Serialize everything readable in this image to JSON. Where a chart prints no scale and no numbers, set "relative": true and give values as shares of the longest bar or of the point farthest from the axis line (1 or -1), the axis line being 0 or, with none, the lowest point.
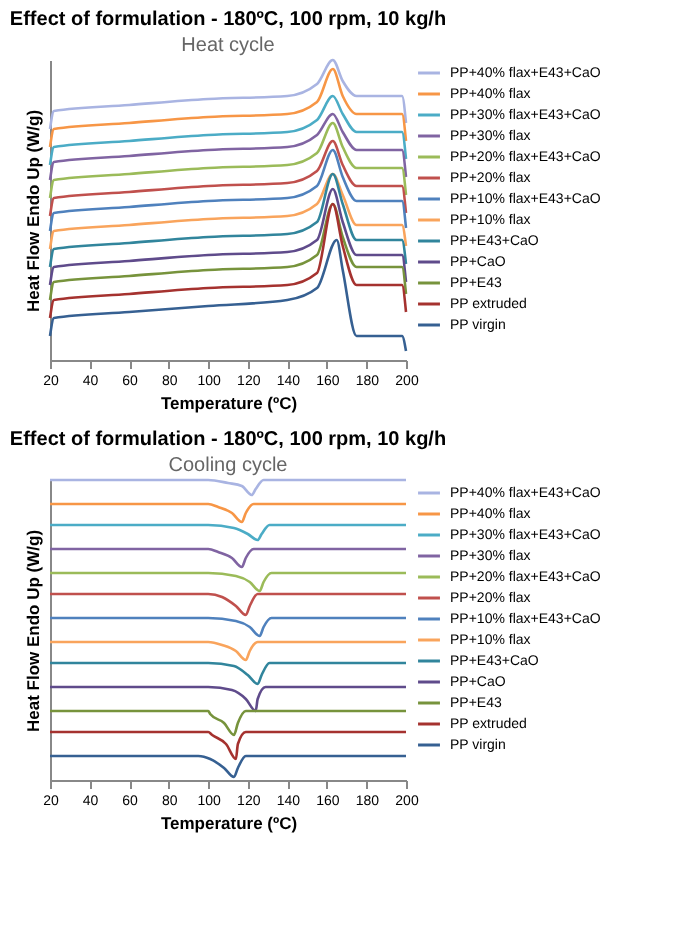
{
  "chart_data": [
    {
      "type": "line",
      "title": "Effect of formulation - 180ºC, 100 rpm, 10 kg/h",
      "subtitle": "Heat cycle",
      "xlabel": "Temperature (ºC)",
      "ylabel": "Heat Flow Endo Up (W/g)",
      "relative": true,
      "xlim": [
        20,
        200
      ],
      "xticks": [
        20,
        40,
        60,
        80,
        100,
        120,
        140,
        160,
        180,
        200
      ],
      "legend": "right",
      "grid": false,
      "x": [
        20,
        22,
        60,
        100,
        140,
        155,
        163,
        168,
        175,
        198,
        200
      ],
      "series": [
        {
          "name": "PP+40% flax+E43+CaO",
          "color": "#a9b4e2",
          "values": [
            0.77,
            0.83,
            0.85,
            0.87,
            0.88,
            0.92,
            1.0,
            0.93,
            0.88,
            0.88,
            0.79
          ]
        },
        {
          "name": "PP+40% flax",
          "color": "#f79646",
          "values": [
            0.71,
            0.77,
            0.79,
            0.81,
            0.82,
            0.86,
            0.97,
            0.88,
            0.82,
            0.82,
            0.73
          ]
        },
        {
          "name": "PP+30% flax+E43+CaO",
          "color": "#4bacc6",
          "values": [
            0.65,
            0.71,
            0.73,
            0.75,
            0.76,
            0.8,
            0.88,
            0.82,
            0.76,
            0.76,
            0.67
          ]
        },
        {
          "name": "PP+30% flax",
          "color": "#8064a2",
          "values": [
            0.6,
            0.66,
            0.68,
            0.7,
            0.71,
            0.75,
            0.82,
            0.76,
            0.7,
            0.7,
            0.61
          ]
        },
        {
          "name": "PP+20% flax+E43+CaO",
          "color": "#9bbb59",
          "values": [
            0.54,
            0.6,
            0.62,
            0.64,
            0.65,
            0.69,
            0.79,
            0.71,
            0.64,
            0.64,
            0.55
          ]
        },
        {
          "name": "PP+20% flax",
          "color": "#c0504d",
          "values": [
            0.48,
            0.54,
            0.56,
            0.58,
            0.59,
            0.63,
            0.73,
            0.65,
            0.58,
            0.58,
            0.49
          ]
        },
        {
          "name": "PP+10% flax+E43+CaO",
          "color": "#4f81bd",
          "values": [
            0.43,
            0.49,
            0.51,
            0.53,
            0.54,
            0.58,
            0.7,
            0.61,
            0.53,
            0.53,
            0.44
          ]
        },
        {
          "name": "PP+10% flax",
          "color": "#f9a45c",
          "values": [
            0.37,
            0.43,
            0.45,
            0.47,
            0.48,
            0.52,
            0.62,
            0.55,
            0.45,
            0.45,
            0.38
          ]
        },
        {
          "name": "PP+E43+CaO",
          "color": "#31859c",
          "values": [
            0.31,
            0.37,
            0.39,
            0.41,
            0.42,
            0.46,
            0.62,
            0.52,
            0.4,
            0.4,
            0.32
          ]
        },
        {
          "name": "PP+CaO",
          "color": "#5f4b8b",
          "values": [
            0.25,
            0.31,
            0.33,
            0.35,
            0.36,
            0.4,
            0.57,
            0.46,
            0.35,
            0.35,
            0.26
          ]
        },
        {
          "name": "PP+E43",
          "color": "#77933c",
          "values": [
            0.2,
            0.26,
            0.28,
            0.3,
            0.31,
            0.35,
            0.52,
            0.41,
            0.31,
            0.31,
            0.22
          ]
        },
        {
          "name": "PP extruded",
          "color": "#a5322f",
          "values": [
            0.14,
            0.2,
            0.22,
            0.24,
            0.25,
            0.29,
            0.52,
            0.38,
            0.25,
            0.25,
            0.16
          ]
        },
        {
          "name": "PP virgin",
          "color": "#366092",
          "x": [
            20,
            22,
            60,
            100,
            140,
            155,
            165,
            168,
            175,
            198,
            200
          ],
          "values": [
            0.08,
            0.14,
            0.16,
            0.18,
            0.2,
            0.24,
            0.4,
            0.3,
            0.08,
            0.08,
            0.03
          ]
        }
      ]
    },
    {
      "type": "line",
      "title": "Effect of formulation - 180ºC, 100 rpm, 10 kg/h",
      "subtitle": "Cooling cycle",
      "xlabel": "Temperature (ºC)",
      "ylabel": "Heat Flow Endo Up (W/g)",
      "relative": true,
      "xlim": [
        20,
        200
      ],
      "xticks": [
        20,
        40,
        60,
        80,
        100,
        120,
        140,
        160,
        180,
        200
      ],
      "legend": "right",
      "grid": false,
      "series": [
        {
          "name": "PP+40% flax+E43+CaO",
          "color": "#a9b4e2",
          "x": [
            20,
            100,
            110,
            117,
            122,
            124,
            128,
            200
          ],
          "values": [
            1.0,
            1.0,
            0.99,
            0.98,
            0.95,
            0.97,
            1.0,
            1.0
          ]
        },
        {
          "name": "PP+40% flax",
          "color": "#f79646",
          "x": [
            20,
            100,
            105,
            112,
            117,
            119,
            123,
            200
          ],
          "values": [
            0.92,
            0.92,
            0.91,
            0.89,
            0.86,
            0.89,
            0.92,
            0.92
          ]
        },
        {
          "name": "PP+30% flax+E43+CaO",
          "color": "#4bacc6",
          "x": [
            20,
            100,
            113,
            120,
            125,
            127,
            131,
            200
          ],
          "values": [
            0.85,
            0.85,
            0.84,
            0.82,
            0.8,
            0.82,
            0.85,
            0.85
          ]
        },
        {
          "name": "PP+30% flax",
          "color": "#8064a2",
          "x": [
            20,
            100,
            105,
            112,
            117,
            119,
            123,
            200
          ],
          "values": [
            0.77,
            0.77,
            0.76,
            0.74,
            0.71,
            0.74,
            0.77,
            0.77
          ]
        },
        {
          "name": "PP+20% flax+E43+CaO",
          "color": "#9bbb59",
          "x": [
            20,
            100,
            114,
            121,
            126,
            128,
            132,
            200
          ],
          "values": [
            0.69,
            0.69,
            0.68,
            0.66,
            0.63,
            0.66,
            0.69,
            0.69
          ]
        },
        {
          "name": "PP+20% flax",
          "color": "#c0504d",
          "x": [
            20,
            100,
            107,
            114,
            119,
            121,
            125,
            200
          ],
          "values": [
            0.62,
            0.62,
            0.61,
            0.58,
            0.55,
            0.58,
            0.62,
            0.62
          ]
        },
        {
          "name": "PP+10% flax+E43+CaO",
          "color": "#4f81bd",
          "x": [
            20,
            100,
            114,
            121,
            126,
            128,
            132,
            200
          ],
          "values": [
            0.54,
            0.54,
            0.53,
            0.51,
            0.48,
            0.51,
            0.54,
            0.54
          ]
        },
        {
          "name": "PP+10% flax",
          "color": "#f9a45c",
          "x": [
            20,
            100,
            107,
            114,
            119,
            121,
            125,
            200
          ],
          "values": [
            0.46,
            0.46,
            0.45,
            0.43,
            0.4,
            0.43,
            0.46,
            0.46
          ]
        },
        {
          "name": "PP+E43+CaO",
          "color": "#31859c",
          "x": [
            20,
            100,
            113,
            120,
            125,
            127,
            131,
            200
          ],
          "values": [
            0.39,
            0.39,
            0.38,
            0.35,
            0.32,
            0.35,
            0.39,
            0.39
          ]
        },
        {
          "name": "PP+CaO",
          "color": "#5f4b8b",
          "x": [
            20,
            100,
            112,
            119,
            124,
            125,
            129,
            200
          ],
          "values": [
            0.31,
            0.31,
            0.3,
            0.27,
            0.23,
            0.27,
            0.31,
            0.31
          ]
        },
        {
          "name": "PP+E43",
          "color": "#77933c",
          "x": [
            20,
            100,
            101,
            108,
            113,
            115,
            119,
            200
          ],
          "values": [
            0.23,
            0.23,
            0.22,
            0.19,
            0.15,
            0.19,
            0.23,
            0.23
          ]
        },
        {
          "name": "PP extruded",
          "color": "#a5322f",
          "x": [
            20,
            100,
            102,
            109,
            114,
            115,
            119,
            200
          ],
          "values": [
            0.16,
            0.16,
            0.15,
            0.12,
            0.07,
            0.12,
            0.16,
            0.16
          ]
        },
        {
          "name": "PP virgin",
          "color": "#366092",
          "x": [
            20,
            95,
            101,
            108,
            113,
            115,
            119,
            200
          ],
          "values": [
            0.08,
            0.08,
            0.07,
            0.04,
            0.01,
            0.04,
            0.08,
            0.08
          ]
        }
      ]
    }
  ]
}
